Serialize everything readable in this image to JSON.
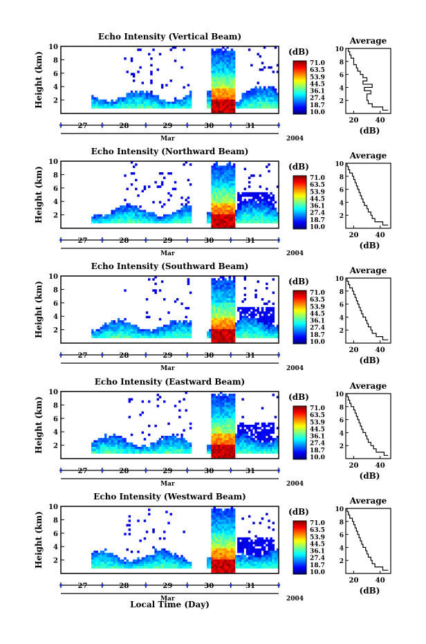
{
  "chart_data": {
    "type": "heatmap",
    "y_range": [
      0,
      10
    ],
    "y_ticks": [
      "2",
      "4",
      "6",
      "8",
      "10"
    ],
    "y_label": "Height (km)",
    "day_labels": [
      "27",
      "28",
      "29",
      "30",
      "31"
    ],
    "month_label": "Mar",
    "year_label": "2004",
    "x_label": "Local Time (Day)",
    "colorbar": {
      "unit": "(dB)",
      "ticks": [
        "71.0",
        "63.5",
        "53.9",
        "44.5",
        "36.1",
        "27.4",
        "18.7",
        "10.0"
      ],
      "range": [
        10.0,
        71.0
      ]
    },
    "avg_title": "Average",
    "avg_unit": "(dB)",
    "panels": [
      {
        "title": "Echo Intensity (Vertical Beam)",
        "avg_ticks": [
          "20",
          "40"
        ],
        "avg_range": [
          14,
          48
        ],
        "avg_profile": {
          "h": [
            0.5,
            1,
            1.5,
            2,
            2.5,
            3,
            3.5,
            4,
            4.5,
            5,
            5.5,
            6,
            6.5,
            7,
            7.5,
            8,
            8.5,
            9,
            9.5,
            10
          ],
          "v": [
            46,
            42,
            34,
            31,
            30,
            30,
            33,
            28,
            34,
            27,
            30,
            27,
            25,
            23,
            22,
            20,
            20,
            18,
            17,
            16
          ]
        }
      },
      {
        "title": "Echo Intensity (Northward Beam)",
        "avg_ticks": [
          "20",
          "40"
        ],
        "avg_range": [
          14,
          48
        ],
        "avg_profile": {
          "h": [
            0.5,
            1,
            1.5,
            2,
            2.5,
            3,
            3.5,
            4,
            4.5,
            5,
            5.5,
            6,
            6.5,
            7,
            7.5,
            8,
            8.5,
            9,
            9.5,
            10
          ],
          "v": [
            46,
            42,
            36,
            34,
            33,
            31,
            30,
            28,
            27,
            26,
            25,
            24,
            23,
            22,
            21,
            20,
            19,
            17,
            16,
            15
          ]
        }
      },
      {
        "title": "Echo Intensity (Southward Beam)",
        "avg_ticks": [
          "20",
          "40"
        ],
        "avg_range": [
          14,
          48
        ],
        "avg_profile": {
          "h": [
            0.5,
            1,
            1.5,
            2,
            2.5,
            3,
            3.5,
            4,
            4.5,
            5,
            5.5,
            6,
            6.5,
            7,
            7.5,
            8,
            8.5,
            9,
            9.5,
            10
          ],
          "v": [
            46,
            42,
            37,
            34,
            33,
            31,
            30,
            29,
            27,
            26,
            25,
            24,
            23,
            22,
            21,
            20,
            19,
            17,
            16,
            15
          ]
        }
      },
      {
        "title": "Echo Intensity (Eastward Beam)",
        "avg_ticks": [
          "20",
          "40"
        ],
        "avg_range": [
          14,
          48
        ],
        "avg_profile": {
          "h": [
            0.5,
            1,
            1.5,
            2,
            2.5,
            3,
            3.5,
            4,
            4.5,
            5,
            5.5,
            6,
            6.5,
            7,
            7.5,
            8,
            8.5,
            9,
            9.5,
            10
          ],
          "v": [
            46,
            43,
            37,
            35,
            33,
            31,
            30,
            29,
            27,
            26,
            25,
            24,
            23,
            22,
            21,
            20,
            18,
            17,
            16,
            15
          ]
        }
      },
      {
        "title": "Echo Intensity (Westward Beam)",
        "avg_ticks": [
          "20",
          "40"
        ],
        "avg_range": [
          14,
          48
        ],
        "avg_profile": {
          "h": [
            0.5,
            1,
            1.5,
            2,
            2.5,
            3,
            3.5,
            4,
            4.5,
            5,
            5.5,
            6,
            6.5,
            7,
            7.5,
            8,
            8.5,
            9,
            9.5,
            10
          ],
          "v": [
            46,
            42,
            36,
            34,
            33,
            31,
            30,
            29,
            27,
            26,
            25,
            24,
            23,
            22,
            21,
            20,
            19,
            17,
            16,
            15
          ]
        }
      }
    ]
  }
}
